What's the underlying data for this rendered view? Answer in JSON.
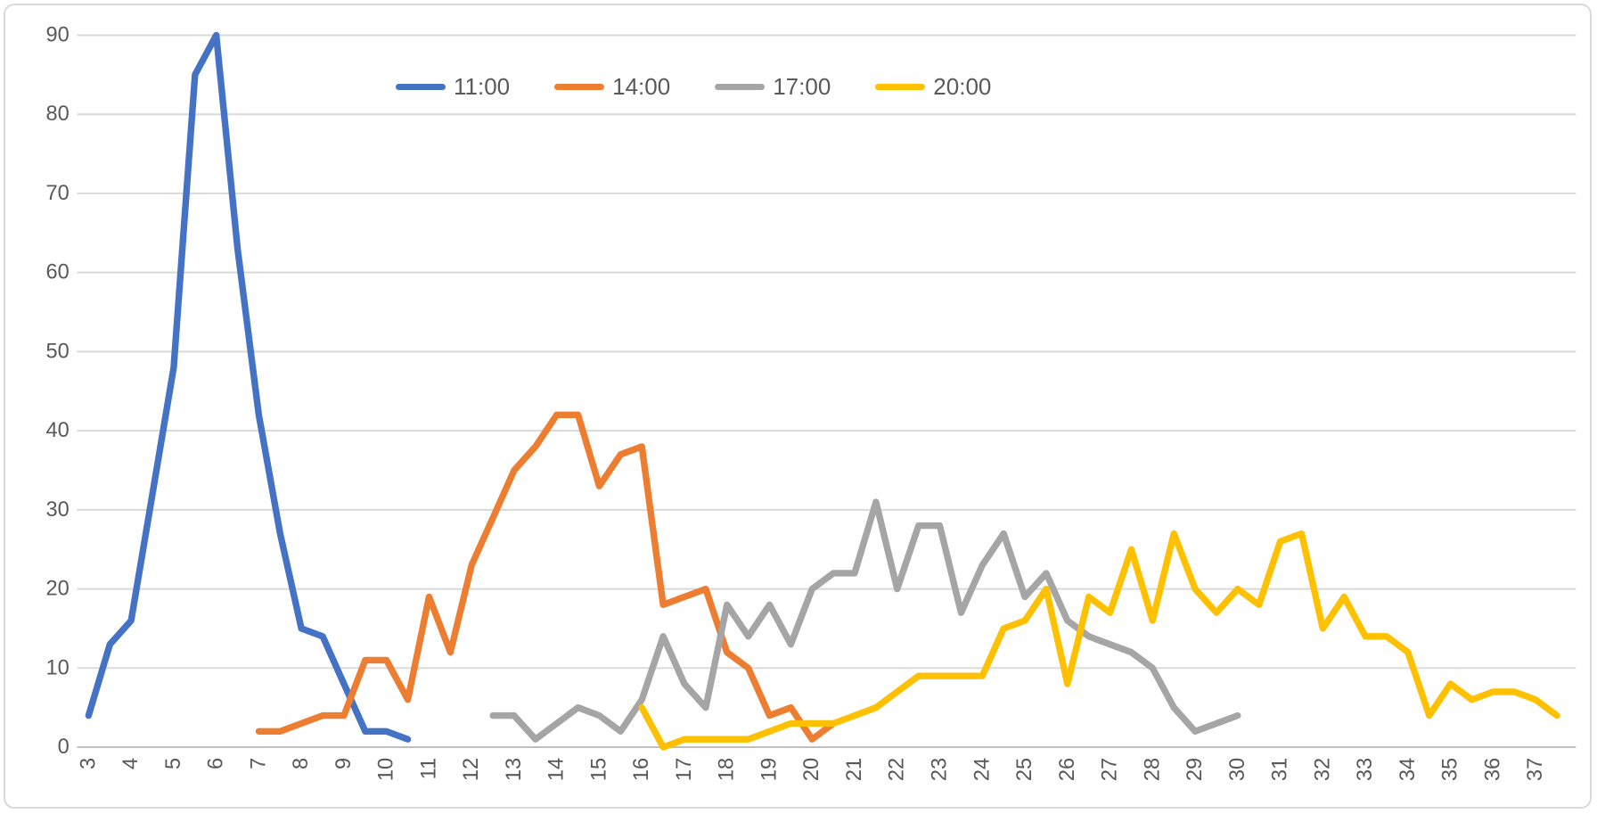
{
  "chart_data": {
    "type": "line",
    "title": "",
    "x_axis": {
      "tick_labels": [
        "3",
        "4",
        "5",
        "6",
        "7",
        "8",
        "9",
        "10",
        "11",
        "12",
        "13",
        "14",
        "15",
        "16",
        "17",
        "18",
        "19",
        "20",
        "21",
        "22",
        "23",
        "24",
        "25",
        "26",
        "27",
        "28",
        "29",
        "30",
        "31",
        "32",
        "33",
        "34",
        "35",
        "36",
        "37"
      ],
      "min": 3,
      "max": 37.5,
      "points_per_label": 2,
      "label_rotation_deg": -90
    },
    "y_axis": {
      "tick_labels": [
        "0",
        "10",
        "20",
        "30",
        "40",
        "50",
        "60",
        "70",
        "80",
        "90"
      ],
      "ticks": [
        0,
        10,
        20,
        30,
        40,
        50,
        60,
        70,
        80,
        90
      ],
      "min": 0,
      "max": 90
    },
    "grid": "horizontal",
    "legend_position": "top",
    "series": [
      {
        "name": "11:00",
        "color": "#4472C4",
        "x_start": 3,
        "x_step": 0.5,
        "values": [
          4,
          13,
          16,
          32,
          48,
          85,
          90,
          63,
          42,
          27,
          15,
          14,
          8,
          2,
          2,
          1
        ]
      },
      {
        "name": "14:00",
        "color": "#ED7D31",
        "x_start": 7,
        "x_step": 0.5,
        "values": [
          2,
          2,
          3,
          4,
          4,
          11,
          11,
          6,
          19,
          12,
          23,
          29,
          35,
          38,
          42,
          42,
          33,
          37,
          38,
          18,
          19,
          20,
          12,
          10,
          4,
          5,
          1,
          3
        ]
      },
      {
        "name": "17:00",
        "color": "#A5A5A5",
        "x_start": 12.5,
        "x_step": 0.5,
        "values": [
          4,
          4,
          1,
          3,
          5,
          4,
          2,
          6,
          14,
          8,
          5,
          18,
          14,
          18,
          13,
          20,
          22,
          22,
          31,
          20,
          28,
          28,
          17,
          23,
          27,
          19,
          22,
          16,
          14,
          13,
          12,
          10,
          5,
          2,
          3,
          4
        ]
      },
      {
        "name": "20:00",
        "color": "#FFC000",
        "x_start": 16,
        "x_step": 0.5,
        "values": [
          5,
          0,
          1,
          1,
          1,
          1,
          2,
          3,
          3,
          3,
          4,
          5,
          7,
          9,
          9,
          9,
          9,
          15,
          16,
          20,
          8,
          19,
          17,
          25,
          16,
          27,
          20,
          17,
          20,
          18,
          26,
          27,
          15,
          19,
          14,
          14,
          12,
          4,
          8,
          6,
          7,
          7,
          6,
          4
        ]
      }
    ]
  },
  "legend": {
    "items": [
      {
        "label": "11:00",
        "color": "#4472C4"
      },
      {
        "label": "14:00",
        "color": "#ED7D31"
      },
      {
        "label": "17:00",
        "color": "#A5A5A5"
      },
      {
        "label": "20:00",
        "color": "#FFC000"
      }
    ]
  },
  "styles": {
    "grid_color": "#D9D9D9",
    "axis_line_color": "#BFBFBF",
    "label_color": "#595959",
    "border_color": "#D9D9D9",
    "background": "#FFFFFF",
    "line_width": 7.5,
    "axis_font_size": 24
  }
}
